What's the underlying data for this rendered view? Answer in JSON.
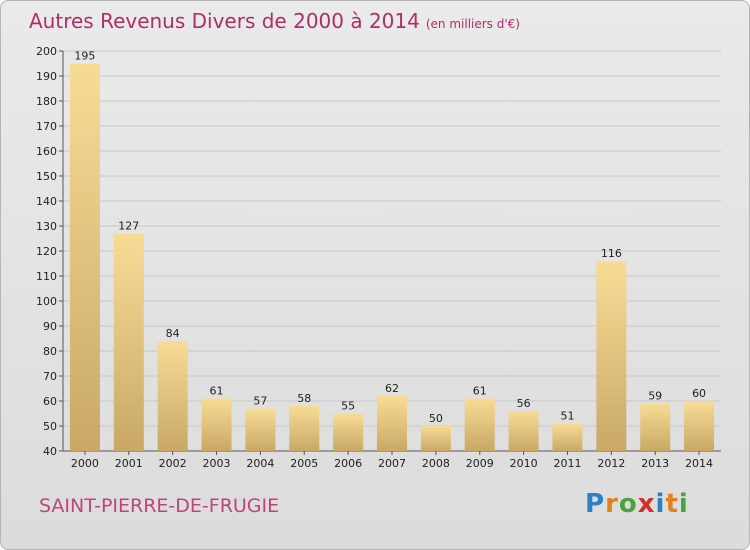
{
  "header": {
    "title": "Autres Revenus Divers de 2000 à 2014",
    "subtitle": "(en milliers d'€)"
  },
  "footer": {
    "commune": "SAINT-PIERRE-DE-FRUGIE",
    "logo_letters": [
      {
        "char": "P",
        "color": "#2e7fc8"
      },
      {
        "char": "r",
        "color": "#e3821c"
      },
      {
        "char": "o",
        "color": "#4aa33e"
      },
      {
        "char": "x",
        "color": "#d62d2d"
      },
      {
        "char": "i",
        "color": "#2e7fc8"
      },
      {
        "char": "t",
        "color": "#e3821c"
      },
      {
        "char": "i",
        "color": "#4aa33e"
      }
    ]
  },
  "colors": {
    "bar_top": "#f8dc96",
    "bar_bottom": "#c9a866",
    "grid": "#c8c8c8"
  },
  "chart_data": {
    "type": "bar",
    "categories": [
      "2000",
      "2001",
      "2002",
      "2003",
      "2004",
      "2005",
      "2006",
      "2007",
      "2008",
      "2009",
      "2010",
      "2011",
      "2012",
      "2013",
      "2014"
    ],
    "values": [
      195,
      127,
      84,
      61,
      57,
      58,
      55,
      62,
      50,
      61,
      56,
      51,
      116,
      59,
      60
    ],
    "title": "Autres Revenus Divers de 2000 à 2014",
    "subtitle": "(en milliers d'€)",
    "xlabel": "",
    "ylabel": "",
    "ylim": [
      40,
      200
    ],
    "yticks": [
      40,
      50,
      60,
      70,
      80,
      90,
      100,
      110,
      120,
      130,
      140,
      150,
      160,
      170,
      180,
      190,
      200
    ],
    "grid": true
  }
}
